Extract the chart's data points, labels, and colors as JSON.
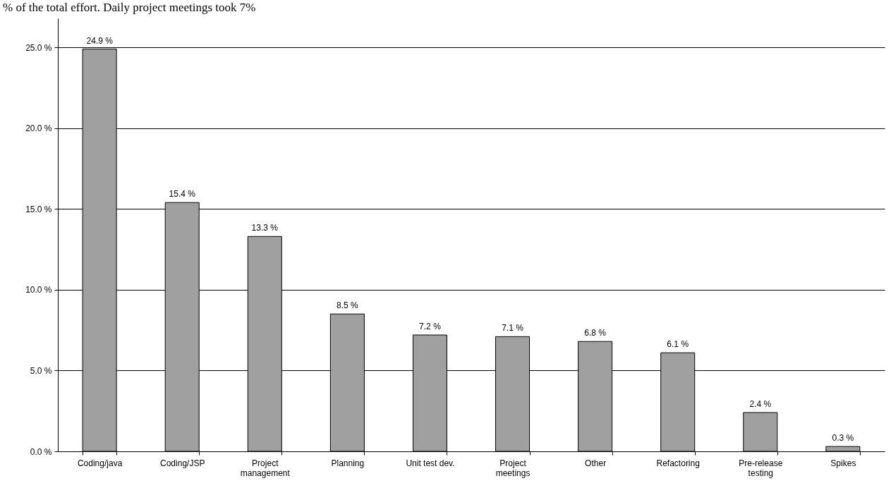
{
  "chart_data": {
    "type": "bar",
    "annotations": [
      "% of the total effort. Daily project meetings took 7%"
    ],
    "categories": [
      "Coding/java",
      "Coding/JSP",
      "Project management",
      "Planning",
      "Unit test dev.",
      "Project meetings",
      "Other",
      "Refactoring",
      "Pre-release testing",
      "Spikes"
    ],
    "values": [
      24.9,
      15.4,
      13.3,
      8.5,
      7.2,
      7.1,
      6.8,
      6.1,
      2.4,
      0.3
    ],
    "value_labels": [
      "24.9 %",
      "15.4 %",
      "13.3 %",
      "8.5 %",
      "7.2 %",
      "7.1 %",
      "6.8 %",
      "6.1 %",
      "2.4 %",
      "0.3 %"
    ],
    "color": "#a0a0a0",
    "ylim": [
      0,
      26.8
    ],
    "yticks": [
      {
        "value": 0,
        "label": "0.0 %"
      },
      {
        "value": 5,
        "label": "5.0 %"
      },
      {
        "value": 10,
        "label": "10.0 %"
      },
      {
        "value": 15,
        "label": "15.0 %"
      },
      {
        "value": 20,
        "label": "20.0 %"
      },
      {
        "value": 25,
        "label": "25.0 %"
      }
    ],
    "grid": "y"
  }
}
